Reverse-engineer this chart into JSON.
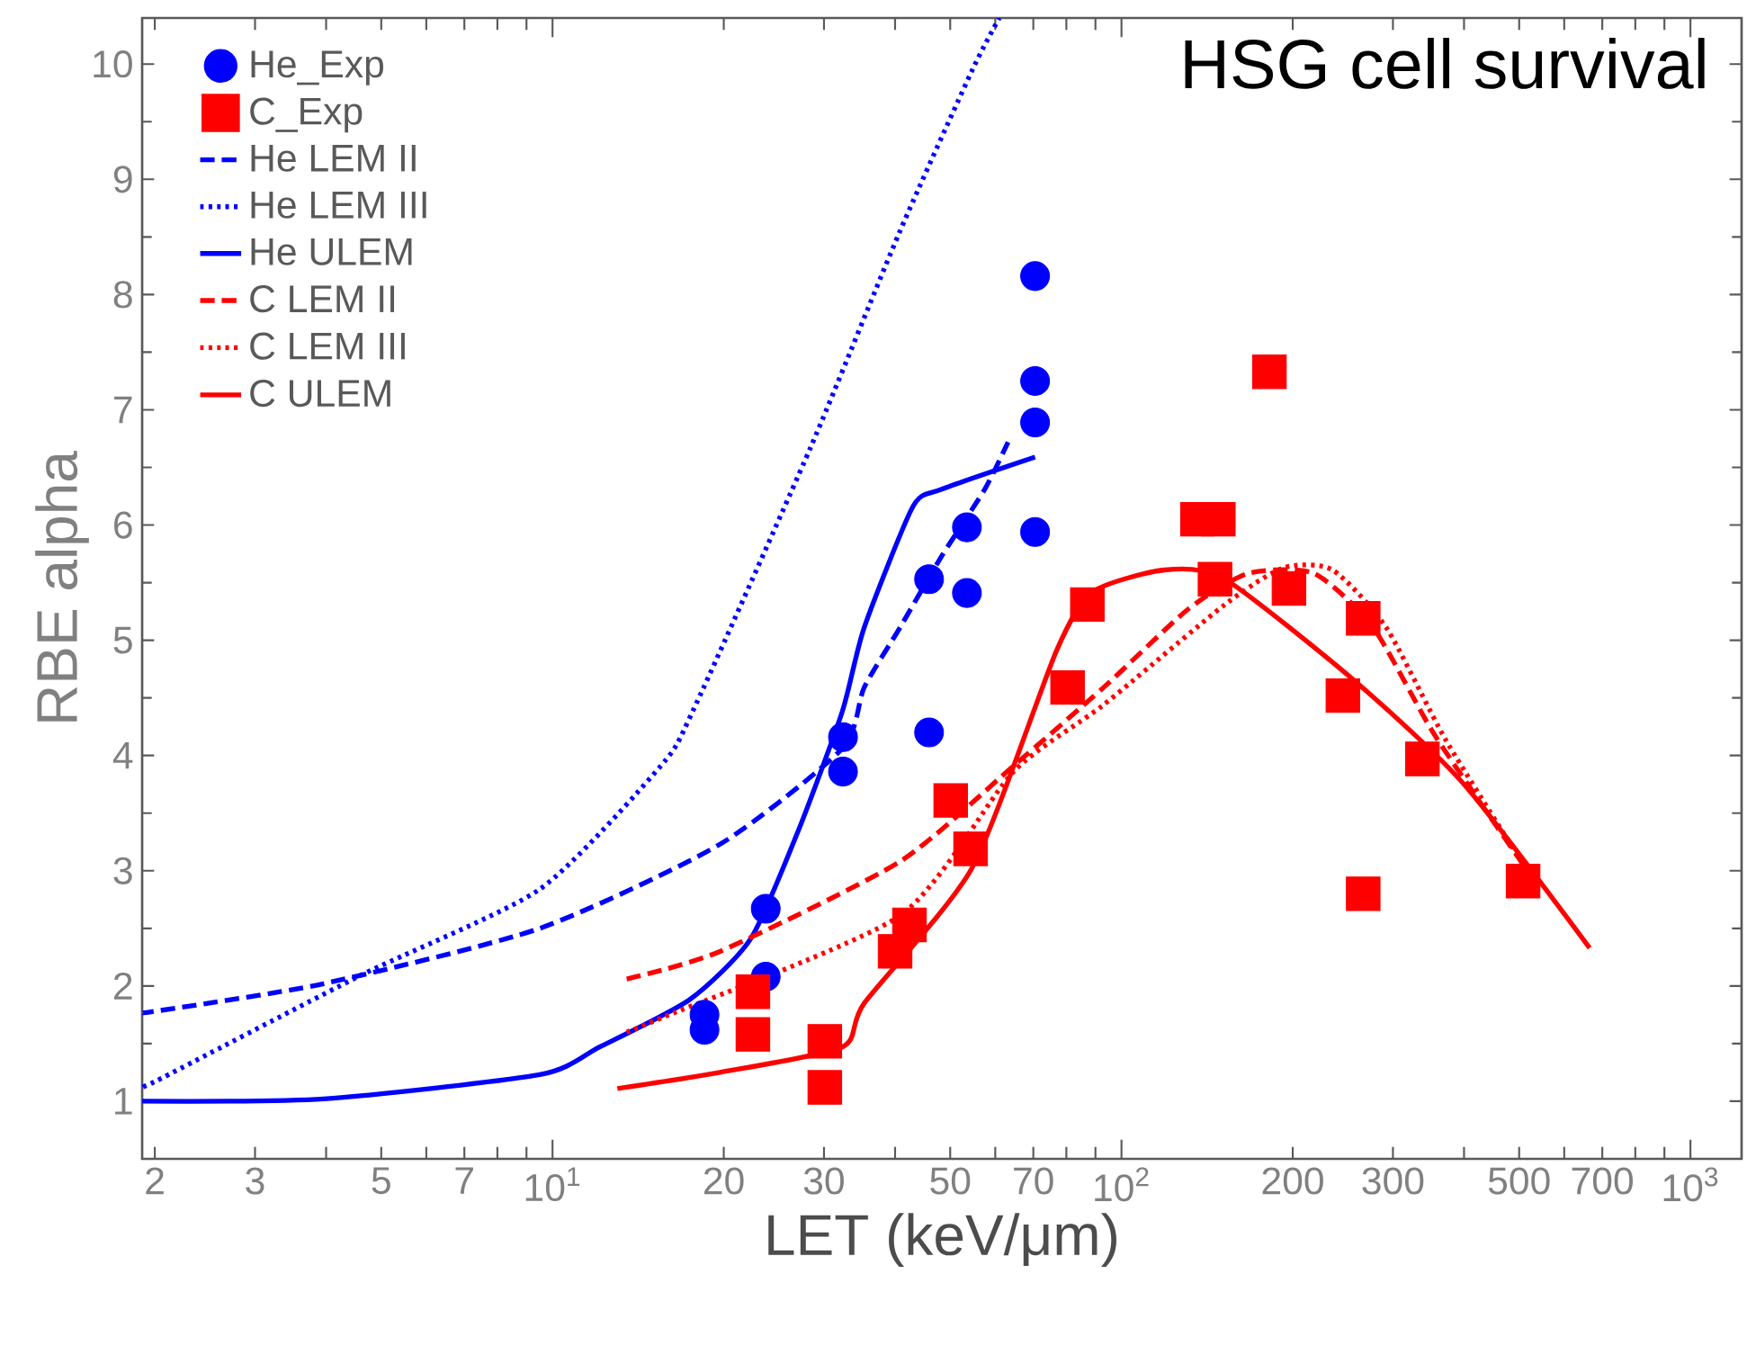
{
  "chart_data": {
    "type": "line",
    "title": "HSG cell survival",
    "xlabel": "LET (keV/μm)",
    "ylabel": "RBE alpha",
    "log": "x",
    "legend": "top left",
    "xlim": [
      1.9,
      1230
    ],
    "ylim": [
      0.5,
      10.4
    ],
    "xticks": [
      2,
      3,
      {
        "value": 4,
        "label": null
      },
      5,
      {
        "value": 6,
        "label": null
      },
      7,
      {
        "value": 8,
        "label": null
      },
      {
        "value": 9,
        "label": null
      },
      {
        "value": 10,
        "label": "10$^{1}$"
      },
      20,
      30,
      {
        "value": 40,
        "label": null
      },
      50,
      {
        "value": 60,
        "label": null
      },
      70,
      {
        "value": 80,
        "label": null
      },
      {
        "value": 90,
        "label": null
      },
      {
        "value": 100,
        "label": "10$^{2}$"
      },
      200,
      300,
      {
        "value": 400,
        "label": null
      },
      500,
      {
        "value": 600,
        "label": null
      },
      700,
      {
        "value": 800,
        "label": null
      },
      {
        "value": 900,
        "label": null
      },
      {
        "value": 1000,
        "label": "10$^{3}$"
      }
    ],
    "yticks": [
      1,
      2,
      3,
      4,
      5,
      6,
      7,
      8,
      9,
      10
    ],
    "series": [
      {
        "name": "He_Exp",
        "type": "scatter",
        "marker": "circle",
        "color": "#0000ff",
        "x": [
          18.5,
          18.5,
          23.7,
          23.7,
          32.4,
          32.4,
          45.9,
          45.9,
          53.5,
          53.5,
          70.5,
          70.5,
          70.5,
          70.5
        ],
        "values": [
          1.75,
          1.62,
          2.08,
          2.67,
          4.16,
          3.86,
          4.2,
          5.53,
          5.41,
          5.98,
          8.16,
          7.25,
          6.89,
          5.94
        ]
      },
      {
        "name": "C_Exp",
        "type": "scatter",
        "marker": "square",
        "color": "#ff0000",
        "x": [
          22.5,
          22.5,
          30.1,
          30.1,
          40,
          42.4,
          50.1,
          54.3,
          80.4,
          87.1,
          136,
          148,
          146,
          182,
          197,
          245,
          266,
          266,
          338,
          508
        ],
        "values": [
          1.95,
          1.58,
          1.52,
          1.12,
          2.3,
          2.53,
          3.61,
          3.19,
          4.59,
          5.31,
          6.05,
          6.05,
          5.53,
          7.33,
          5.45,
          4.52,
          5.19,
          2.8,
          3.97,
          2.91
        ]
      },
      {
        "name": "He LEM II",
        "line_style": "dashed",
        "color": "#0000ff",
        "x": [
          1.9,
          2,
          3.96,
          9.5,
          19.7,
          32.3,
          35.3,
          40.8,
          48.3,
          57.5,
          63.2
        ],
        "values": [
          1.77,
          1.78,
          2.02,
          2.5,
          3.23,
          4.06,
          4.59,
          5.11,
          5.73,
          6.31,
          6.72
        ]
      },
      {
        "name": "He LEM III",
        "line_style": "dotted",
        "color": "#0000ff",
        "x": [
          1.9,
          2,
          4.59,
          9.5,
          15.5,
          17.7,
          28.4,
          40.8,
          54.7,
          61
        ],
        "values": [
          1.15,
          1.17,
          2.09,
          2.84,
          3.91,
          4.4,
          6.67,
          8.55,
          9.95,
          10.4
        ]
      },
      {
        "name": "He ULEM",
        "line_style": "solid",
        "color": "#0000ff",
        "x": [
          1.9,
          3.96,
          9.5,
          12.1,
          17.4,
          22.3,
          27,
          32.3,
          35.3,
          43,
          48.3,
          70.5
        ],
        "values": [
          1.0,
          1.02,
          1.23,
          1.47,
          1.88,
          2.41,
          3.34,
          4.38,
          5.11,
          6.16,
          6.31,
          6.59
        ]
      },
      {
        "name": "C LEM II",
        "line_style": "dashed",
        "color": "#ff0000",
        "x": [
          13.5,
          19.7,
          40.8,
          64.6,
          93,
          131,
          167,
          218,
          277,
          356,
          512
        ],
        "values": [
          2.06,
          2.3,
          3.08,
          3.91,
          4.59,
          5.27,
          5.58,
          5.58,
          5.11,
          4.17,
          3.03
        ]
      },
      {
        "name": "C LEM III",
        "line_style": "dotted",
        "color": "#ff0000",
        "x": [
          13.5,
          15.5,
          40.8,
          64.6,
          93,
          152,
          193,
          235,
          292,
          372,
          512
        ],
        "values": [
          1.6,
          1.72,
          2.61,
          3.86,
          4.44,
          5.31,
          5.63,
          5.61,
          5.11,
          4.13,
          3.03
        ]
      },
      {
        "name": "C ULEM",
        "line_style": "solid",
        "color": "#ff0000",
        "x": [
          13,
          19.7,
          32.3,
          35.3,
          54.7,
          76.9,
          89,
          119,
          152,
          258,
          400,
          665
        ],
        "values": [
          1.11,
          1.25,
          1.47,
          1.85,
          3.03,
          4.91,
          5.42,
          5.61,
          5.53,
          4.64,
          3.75,
          2.33
        ]
      }
    ]
  }
}
